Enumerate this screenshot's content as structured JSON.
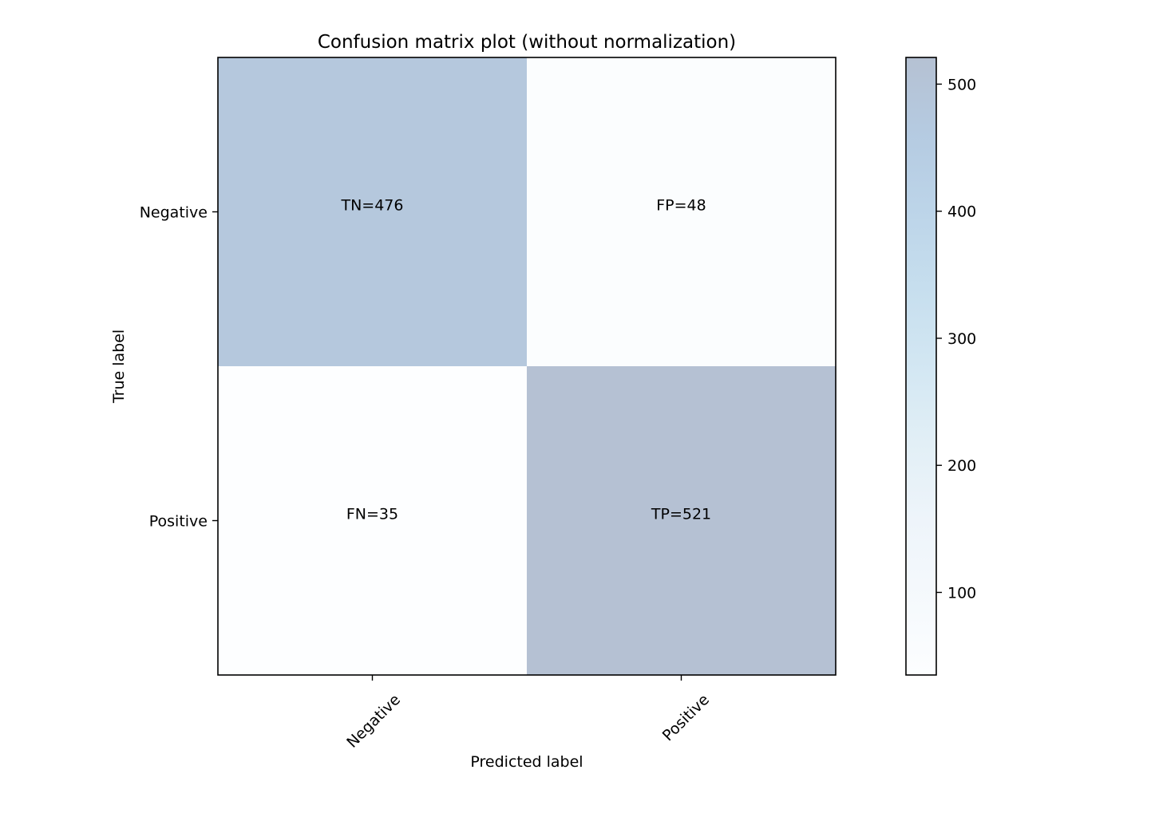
{
  "chart_data": {
    "type": "heatmap",
    "title": "Confusion matrix plot (without normalization)",
    "xlabel": "Predicted label",
    "ylabel": "True label",
    "x_categories": [
      "Negative",
      "Positive"
    ],
    "y_categories": [
      "Negative",
      "Positive"
    ],
    "values": [
      [
        476,
        48
      ],
      [
        35,
        521
      ]
    ],
    "cell_labels": [
      [
        "TN=476",
        "FP=48"
      ],
      [
        "FN=35",
        "TP=521"
      ]
    ],
    "colormap": "Blues",
    "alpha": 0.3,
    "colorbar": {
      "range": [
        35,
        521
      ],
      "ticks": [
        100,
        200,
        300,
        400,
        500
      ],
      "tick_labels": [
        "100",
        "200",
        "300",
        "400",
        "500"
      ]
    },
    "x_tick_rotation_deg": 45,
    "grid": false
  }
}
